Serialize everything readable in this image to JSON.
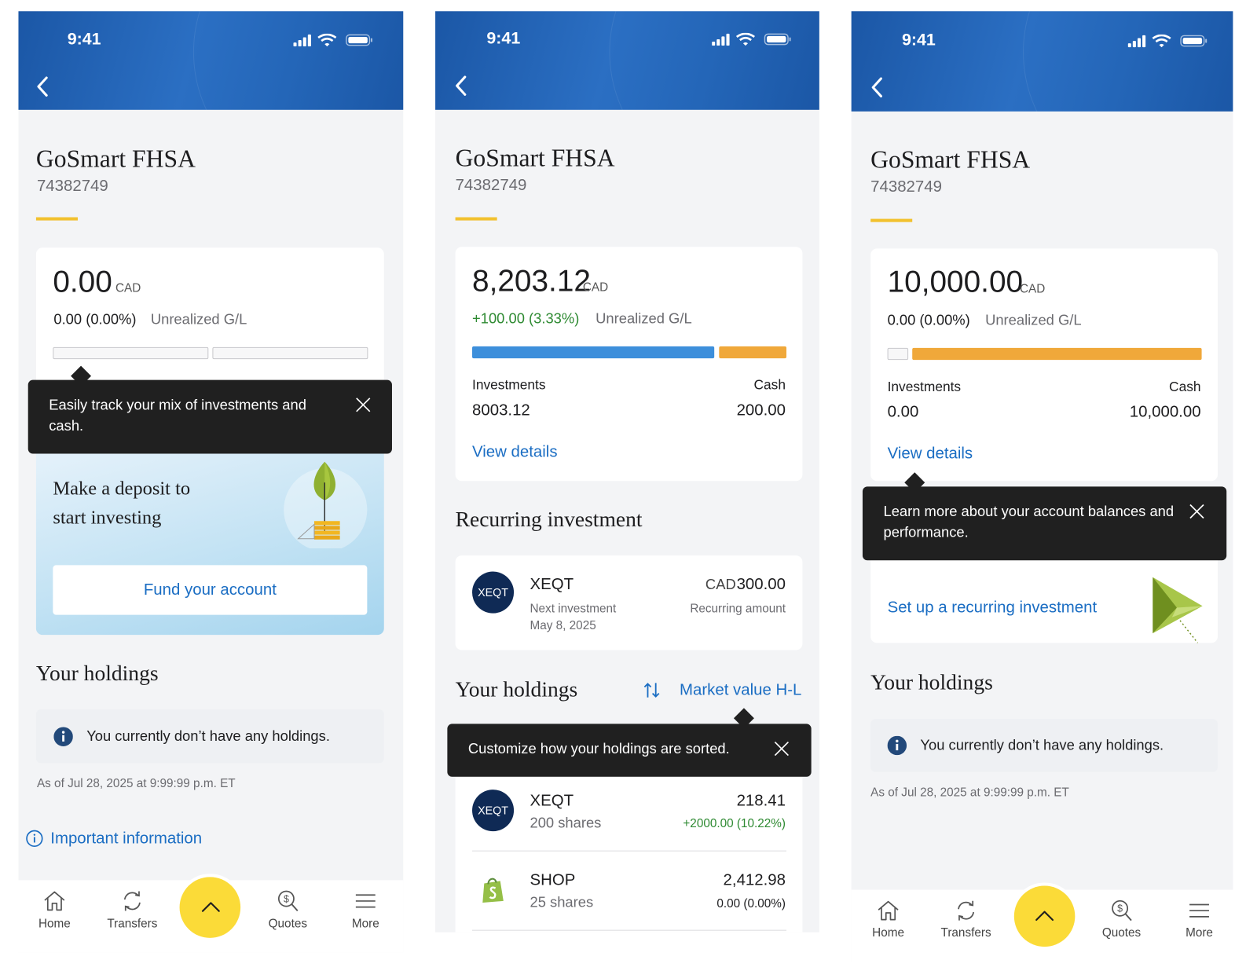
{
  "status_time": "9:41",
  "tab_bar": [
    "Home",
    "Transfers",
    "Quotes",
    "More"
  ],
  "screens": [
    {
      "title": "GoSmart FHSA",
      "account_number": "74382749",
      "balance": "0.00",
      "currency": "CAD",
      "gain_loss": "0.00 (0.00%)",
      "gain_loss_label": "Unrealized G/L",
      "tooltip": "Easily track your mix of investments and cash.",
      "deposit_prompt": "Make a deposit to start investing",
      "deposit_button": "Fund your account",
      "holdings_title": "Your holdings",
      "holdings_empty": "You currently don’t have any holdings.",
      "as_of": "As of Jul 28, 2025 at 9:99:99 p.m. ET",
      "important_info": "Important information"
    },
    {
      "title": "GoSmart FHSA",
      "account_number": "74382749",
      "balance": "8,203.12",
      "currency": "CAD",
      "gain_loss": "+100.00 (3.33%)",
      "gain_loss_label": "Unrealized G/L",
      "allocation_labels": [
        "Investments",
        "Cash"
      ],
      "allocation_values": [
        "8003.12",
        "200.00"
      ],
      "view_details": "View details",
      "recurring": {
        "title": "Recurring investment",
        "symbol": "XEQT",
        "next_label": "Next investment",
        "next_date": "May 8, 2025",
        "currency": "CAD",
        "amount": "300.00",
        "amount_label": "Recurring amount"
      },
      "holdings_title": "Your holdings",
      "sort_label": "Market value H-L",
      "tooltip": "Customize how your holdings are sorted.",
      "holdings": [
        {
          "symbol": "XEQT",
          "shares": "200 shares",
          "value": "218.41",
          "change": "+2000.00 (10.22%)"
        },
        {
          "symbol": "SHOP",
          "shares": "25 shares",
          "value": "2,412.98",
          "change": "0.00 (0.00%)"
        }
      ]
    },
    {
      "title": "GoSmart FHSA",
      "account_number": "74382749",
      "balance": "10,000.00",
      "currency": "CAD",
      "gain_loss": "0.00 (0.00%)",
      "gain_loss_label": "Unrealized G/L",
      "allocation_labels": [
        "Investments",
        "Cash"
      ],
      "allocation_values": [
        "0.00",
        "10,000.00"
      ],
      "view_details": "View details",
      "tooltip": "Learn more about your account balances and performance.",
      "recurring_cta": "Set up a recurring investment",
      "holdings_title": "Your holdings",
      "holdings_empty": "You currently don’t have any holdings.",
      "as_of": "As of Jul 28, 2025 at 9:99:99 p.m. ET"
    }
  ]
}
